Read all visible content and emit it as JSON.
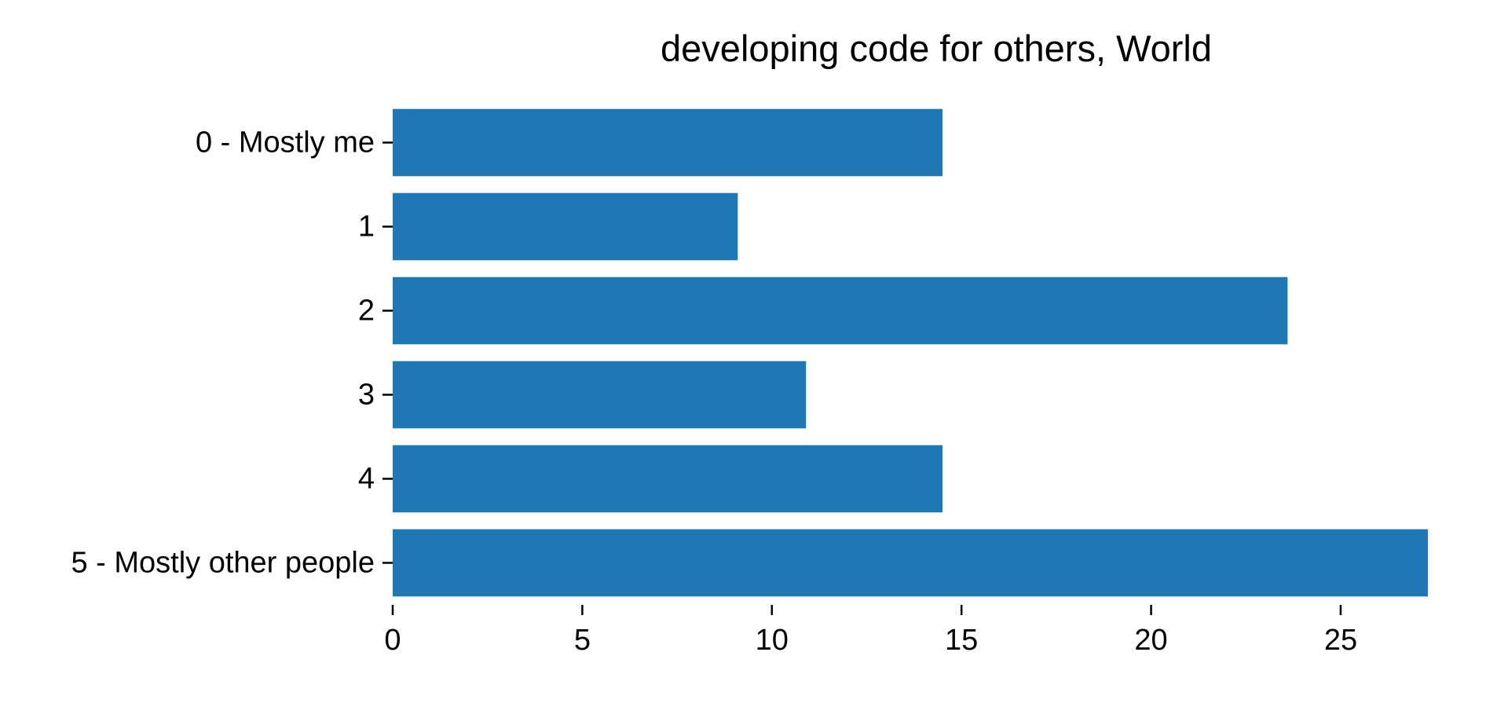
{
  "chart_data": {
    "type": "bar",
    "orientation": "horizontal",
    "title": "developing code for others, World",
    "xlabel": "",
    "ylabel": "",
    "categories": [
      "0 - Mostly me",
      "1",
      "2",
      "3",
      "4",
      "5 - Mostly other people"
    ],
    "values": [
      14.5,
      9.1,
      23.6,
      10.9,
      14.5,
      27.3
    ],
    "xlim": [
      0,
      27.3
    ],
    "xticks": [
      0,
      5,
      10,
      15,
      20,
      25
    ],
    "grid": false,
    "bar_color": "#1f77b4",
    "legend": "none"
  }
}
